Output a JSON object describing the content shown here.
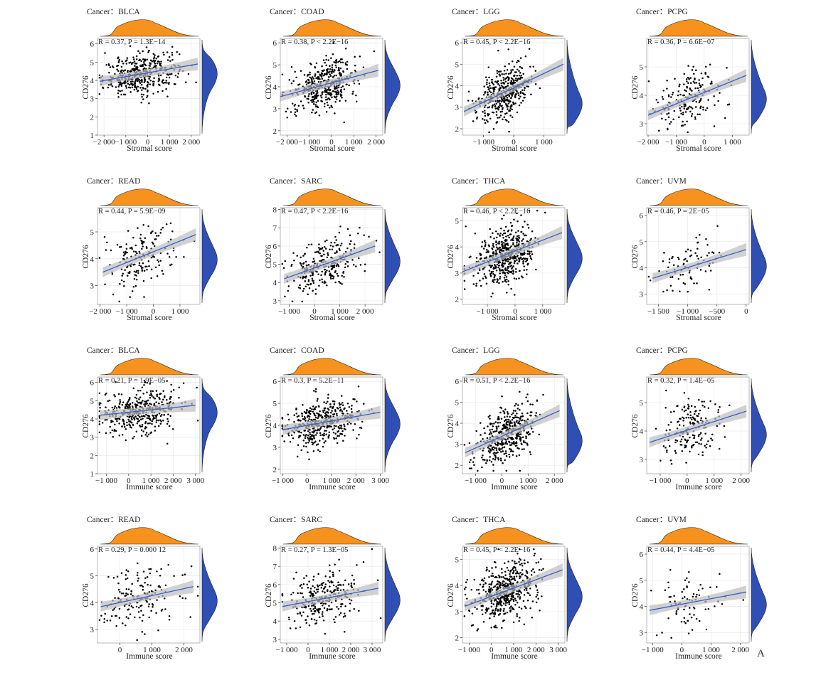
{
  "figure": {
    "panel_letter": "A"
  },
  "colors": {
    "top_density": "#f7921e",
    "right_density": "#2f4fb5",
    "points": "#000000",
    "fit_line": "#3a5fc8",
    "band": "#bdbdbd",
    "grid": "#ececec"
  },
  "chart_data": [
    {
      "type": "scatter",
      "title": "Cancer：BLCA",
      "xlabel": "Stromal score",
      "ylabel": "CD276",
      "stat_text": "R = 0.37, P = 1.3E−14",
      "xlim": [
        -2300,
        2400
      ],
      "ylim": [
        1,
        6.3
      ],
      "xticks": [
        -2000,
        -1000,
        0,
        1000,
        2000
      ],
      "xticklabels": [
        "−2 000",
        "−1 000",
        "0",
        "1 000",
        "2 000"
      ],
      "yticks": [
        1,
        2,
        3,
        4,
        5,
        6
      ],
      "yticklabels": [
        "1",
        "2",
        "3",
        "4",
        "5",
        "6"
      ],
      "regression": {
        "x": [
          -2200,
          2300
        ],
        "y": [
          3.95,
          4.9
        ]
      },
      "point_count": 400,
      "x_spread": 850,
      "y_spread": 0.55,
      "y_center": 4.4
    },
    {
      "type": "scatter",
      "title": "Cancer：COAD",
      "xlabel": "Stromal score",
      "ylabel": "CD276",
      "stat_text": "R = 0.38, P < 2.2E−16",
      "xlim": [
        -2300,
        2300
      ],
      "ylim": [
        1.8,
        6.2
      ],
      "xticks": [
        -2000,
        -1000,
        0,
        1000,
        2000
      ],
      "xticklabels": [
        "−2 000",
        "−1 000",
        "0",
        "1 000",
        "2 000"
      ],
      "yticks": [
        2,
        3,
        4,
        5,
        6
      ],
      "yticklabels": [
        "2",
        "3",
        "4",
        "5",
        "6"
      ],
      "regression": {
        "x": [
          -2300,
          2100
        ],
        "y": [
          3.55,
          4.75
        ]
      },
      "point_count": 420,
      "x_spread": 750,
      "y_spread": 0.55,
      "y_center": 4.1
    },
    {
      "type": "scatter",
      "title": "Cancer：LGG",
      "xlabel": "Stromal score",
      "ylabel": "CD276",
      "stat_text": "R = 0.45, P < 2.2E−16",
      "xlim": [
        -1700,
        1700
      ],
      "ylim": [
        1.7,
        6.2
      ],
      "xticks": [
        -1000,
        0,
        1000
      ],
      "xticklabels": [
        "−1 000",
        "0",
        "1 000"
      ],
      "yticks": [
        2,
        3,
        4,
        5,
        6
      ],
      "yticklabels": [
        "2",
        "3",
        "4",
        "5",
        "6"
      ],
      "regression": {
        "x": [
          -1650,
          1650
        ],
        "y": [
          2.8,
          5.0
        ]
      },
      "point_count": 420,
      "x_spread": 450,
      "y_spread": 0.6,
      "y_center": 3.2
    },
    {
      "type": "scatter",
      "title": "Cancer：PCPG",
      "xlabel": "Stromal score",
      "ylabel": "CD276",
      "stat_text": "R = 0.36, P = 6.6E−07",
      "xlim": [
        -2050,
        1600
      ],
      "ylim": [
        2.6,
        6.0
      ],
      "xticks": [
        -2000,
        -1000,
        0,
        1000
      ],
      "xticklabels": [
        "−2 000",
        "−1 000",
        "0",
        "1 000"
      ],
      "yticks": [
        3,
        4,
        5
      ],
      "yticklabels": [
        "3",
        "4",
        "5"
      ],
      "regression": {
        "x": [
          -2000,
          1500
        ],
        "y": [
          3.3,
          4.7
        ]
      },
      "point_count": 180,
      "x_spread": 600,
      "y_spread": 0.55,
      "y_center": 3.9
    },
    {
      "type": "scatter",
      "title": "Cancer：READ",
      "xlabel": "Stromal score",
      "ylabel": "CD276",
      "stat_text": "R = 0.44, P = 5.9E−09",
      "xlim": [
        -2100,
        1750
      ],
      "ylim": [
        2.3,
        5.9
      ],
      "xticks": [
        -2000,
        -1000,
        0,
        1000
      ],
      "xticklabels": [
        "−2 000",
        "−1 000",
        "0",
        "1 000"
      ],
      "yticks": [
        3,
        4,
        5
      ],
      "yticklabels": [
        "3",
        "4",
        "5"
      ],
      "regression": {
        "x": [
          -1900,
          1600
        ],
        "y": [
          3.5,
          4.9
        ]
      },
      "point_count": 165,
      "x_spread": 600,
      "y_spread": 0.55,
      "y_center": 4.0
    },
    {
      "type": "scatter",
      "title": "Cancer：SARC",
      "xlabel": "Stromal score",
      "ylabel": "CD276",
      "stat_text": "R = 0.47, P < 2.2E−16",
      "xlim": [
        -1350,
        2700
      ],
      "ylim": [
        2.8,
        8.1
      ],
      "xticks": [
        -1000,
        0,
        1000,
        2000
      ],
      "xticklabels": [
        "−1 000",
        "0",
        "1 000",
        "2 000"
      ],
      "yticks": [
        3,
        4,
        5,
        6,
        7,
        8
      ],
      "yticklabels": [
        "3",
        "4",
        "5",
        "6",
        "7",
        "8"
      ],
      "regression": {
        "x": [
          -1200,
          2400
        ],
        "y": [
          4.2,
          6.0
        ]
      },
      "point_count": 260,
      "x_spread": 700,
      "y_spread": 0.75,
      "y_center": 5.2
    },
    {
      "type": "scatter",
      "title": "Cancer：THCA",
      "xlabel": "Stromal score",
      "ylabel": "CD276",
      "stat_text": "R = 0.46, P < 2.2E−16",
      "xlim": [
        -1900,
        1800
      ],
      "ylim": [
        1.8,
        5.5
      ],
      "xticks": [
        -1000,
        0,
        1000
      ],
      "xticklabels": [
        "−1 000",
        "0",
        "1 000"
      ],
      "yticks": [
        2,
        3,
        4,
        5
      ],
      "yticklabels": [
        "2",
        "3",
        "4",
        "5"
      ],
      "regression": {
        "x": [
          -1900,
          1700
        ],
        "y": [
          3.05,
          4.55
        ]
      },
      "point_count": 500,
      "x_spread": 550,
      "y_spread": 0.55,
      "y_center": 3.6
    },
    {
      "type": "scatter",
      "title": "Cancer：UVM",
      "xlabel": "Stromal score",
      "ylabel": "CD276",
      "stat_text": "R = 0.46, P = 2E−05",
      "xlim": [
        -1700,
        50
      ],
      "ylim": [
        2.6,
        6.3
      ],
      "xticks": [
        -1500,
        -1000,
        -500,
        0
      ],
      "xticklabels": [
        "−1 500",
        "−1 000",
        "−500",
        "0"
      ],
      "yticks": [
        3,
        4,
        5,
        6
      ],
      "yticklabels": [
        "3",
        "4",
        "5",
        "6"
      ],
      "regression": {
        "x": [
          -1600,
          0
        ],
        "y": [
          3.6,
          4.7
        ]
      },
      "point_count": 80,
      "x_spread": 300,
      "y_spread": 0.5,
      "y_center": 4.1
    },
    {
      "type": "scatter",
      "title": "Cancer：BLCA",
      "xlabel": "Immune score",
      "ylabel": "CD276",
      "stat_text": "R = 0.21, P = 1.9E−05",
      "xlim": [
        -1400,
        3200
      ],
      "ylim": [
        1,
        6.3
      ],
      "xticks": [
        -1000,
        0,
        1000,
        2000,
        3000
      ],
      "xticklabels": [
        "−1 000",
        "0",
        "1 000",
        "2 000",
        "3 000"
      ],
      "yticks": [
        1,
        2,
        3,
        4,
        5,
        6
      ],
      "yticklabels": [
        "1",
        "2",
        "3",
        "4",
        "5",
        "6"
      ],
      "regression": {
        "x": [
          -1300,
          3000
        ],
        "y": [
          4.2,
          4.75
        ]
      },
      "point_count": 400,
      "x_spread": 900,
      "y_spread": 0.6,
      "y_center": 4.4
    },
    {
      "type": "scatter",
      "title": "Cancer：COAD",
      "xlabel": "Immune score",
      "ylabel": "CD276",
      "stat_text": "R = 0.3, P = 5.2E−11",
      "xlim": [
        -1100,
        3100
      ],
      "ylim": [
        1.8,
        6.2
      ],
      "xticks": [
        -1000,
        0,
        1000,
        2000,
        3000
      ],
      "xticklabels": [
        "−1 000",
        "0",
        "1 000",
        "2 000",
        "3 000"
      ],
      "yticks": [
        2,
        3,
        4,
        5,
        6
      ],
      "yticklabels": [
        "2",
        "3",
        "4",
        "5",
        "6"
      ],
      "regression": {
        "x": [
          -1000,
          3000
        ],
        "y": [
          3.8,
          4.6
        ]
      },
      "point_count": 420,
      "x_spread": 750,
      "y_spread": 0.5,
      "y_center": 4.1
    },
    {
      "type": "scatter",
      "title": "Cancer：LGG",
      "xlabel": "Immune score",
      "ylabel": "CD276",
      "stat_text": "R = 0.51, P < 2.2E−16",
      "xlim": [
        -1500,
        2400
      ],
      "ylim": [
        1.6,
        6.2
      ],
      "xticks": [
        -1000,
        0,
        1000,
        2000
      ],
      "xticklabels": [
        "−1 000",
        "0",
        "1 000",
        "2 000"
      ],
      "yticks": [
        2,
        3,
        4,
        5,
        6
      ],
      "yticklabels": [
        "2",
        "3",
        "4",
        "5",
        "6"
      ],
      "regression": {
        "x": [
          -1400,
          2200
        ],
        "y": [
          2.6,
          4.6
        ]
      },
      "point_count": 420,
      "x_spread": 550,
      "y_spread": 0.65,
      "y_center": 3.2
    },
    {
      "type": "scatter",
      "title": "Cancer：PCPG",
      "xlabel": "Immune score",
      "ylabel": "CD276",
      "stat_text": "R = 0.32, P = 1.4E−05",
      "xlim": [
        -1500,
        2300
      ],
      "ylim": [
        2.5,
        5.9
      ],
      "xticks": [
        -1000,
        0,
        1000,
        2000
      ],
      "xticklabels": [
        "−1 000",
        "0",
        "1 000",
        "2 000"
      ],
      "yticks": [
        3,
        4,
        5
      ],
      "yticklabels": [
        "3",
        "4",
        "5"
      ],
      "regression": {
        "x": [
          -1400,
          2200
        ],
        "y": [
          3.6,
          4.7
        ]
      },
      "point_count": 180,
      "x_spread": 550,
      "y_spread": 0.55,
      "y_center": 3.9
    },
    {
      "type": "scatter",
      "title": "Cancer：READ",
      "xlabel": "Immune score",
      "ylabel": "CD276",
      "stat_text": "R = 0.29, P = 0.000 12",
      "xlim": [
        -700,
        2500
      ],
      "ylim": [
        2.5,
        6.1
      ],
      "xticks": [
        0,
        1000,
        2000
      ],
      "xticklabels": [
        "0",
        "1 000",
        "2 000"
      ],
      "yticks": [
        3,
        4,
        5,
        6
      ],
      "yticklabels": [
        "3",
        "4",
        "5",
        "6"
      ],
      "regression": {
        "x": [
          -600,
          2300
        ],
        "y": [
          3.85,
          4.6
        ]
      },
      "point_count": 165,
      "x_spread": 600,
      "y_spread": 0.55,
      "y_center": 4.1
    },
    {
      "type": "scatter",
      "title": "Cancer：SARC",
      "xlabel": "Immune score",
      "ylabel": "CD276",
      "stat_text": "R = 0.27, P = 1.3E−05",
      "xlim": [
        -1300,
        3500
      ],
      "ylim": [
        2.8,
        8.1
      ],
      "xticks": [
        -1000,
        0,
        1000,
        2000,
        3000
      ],
      "xticklabels": [
        "−1 000",
        "0",
        "1 000",
        "2 000",
        "3 000"
      ],
      "yticks": [
        3,
        4,
        5,
        6,
        7,
        8
      ],
      "yticklabels": [
        "3",
        "4",
        "5",
        "6",
        "7",
        "8"
      ],
      "regression": {
        "x": [
          -1200,
          3300
        ],
        "y": [
          4.8,
          5.8
        ]
      },
      "point_count": 260,
      "x_spread": 900,
      "y_spread": 0.75,
      "y_center": 5.2
    },
    {
      "type": "scatter",
      "title": "Cancer：THCA",
      "xlabel": "Immune score",
      "ylabel": "CD276",
      "stat_text": "R = 0.45, P < 2.2E−16",
      "xlim": [
        -1300,
        3300
      ],
      "ylim": [
        1.8,
        5.5
      ],
      "xticks": [
        -1000,
        0,
        1000,
        2000,
        3000
      ],
      "xticklabels": [
        "−1 000",
        "0",
        "1 000",
        "2 000",
        "3 000"
      ],
      "yticks": [
        2,
        3,
        4,
        5
      ],
      "yticklabels": [
        "2",
        "3",
        "4",
        "5"
      ],
      "regression": {
        "x": [
          -1200,
          3200
        ],
        "y": [
          3.2,
          4.6
        ]
      },
      "point_count": 500,
      "x_spread": 700,
      "y_spread": 0.55,
      "y_center": 3.6
    },
    {
      "type": "scatter",
      "title": "Cancer：UVM",
      "xlabel": "Immune score",
      "ylabel": "CD276",
      "stat_text": "R = 0.44, P = 4.4E−05",
      "xlim": [
        -1200,
        2300
      ],
      "ylim": [
        2.6,
        6.3
      ],
      "xticks": [
        -1000,
        0,
        1000,
        2000
      ],
      "xticklabels": [
        "−1 000",
        "0",
        "1 000",
        "2 000"
      ],
      "yticks": [
        3,
        4,
        5,
        6
      ],
      "yticklabels": [
        "3",
        "4",
        "5",
        "6"
      ],
      "regression": {
        "x": [
          -1100,
          2200
        ],
        "y": [
          3.85,
          4.55
        ]
      },
      "point_count": 80,
      "x_spread": 550,
      "y_spread": 0.5,
      "y_center": 4.1
    }
  ]
}
